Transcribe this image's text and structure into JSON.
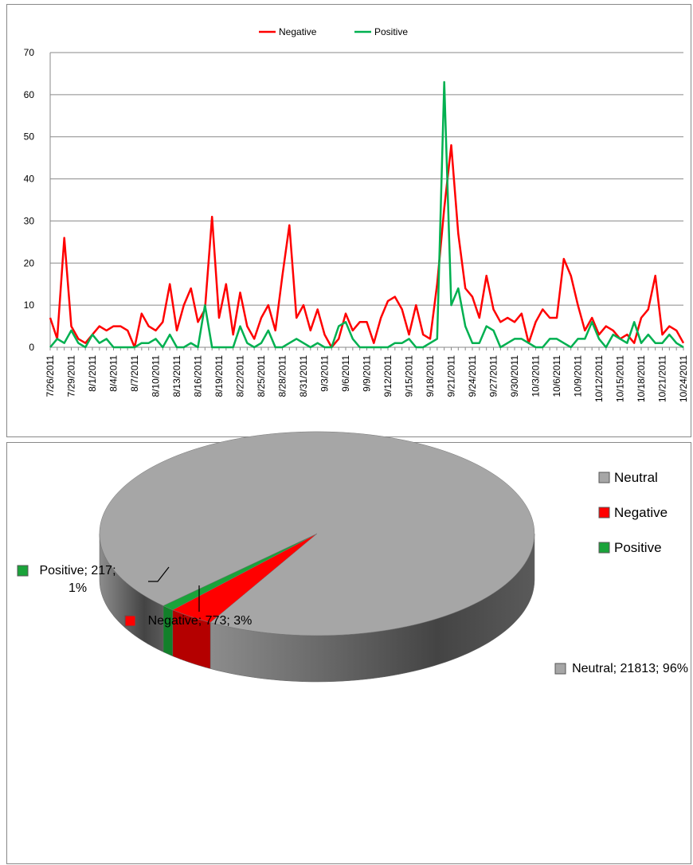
{
  "chart_data": [
    {
      "type": "line",
      "categories": [
        "7/26/2011",
        null,
        null,
        "7/29/2011",
        null,
        null,
        "8/1/2011",
        null,
        null,
        "8/4/2011",
        null,
        null,
        "8/7/2011",
        null,
        null,
        "8/10/2011",
        null,
        null,
        "8/13/2011",
        null,
        null,
        "8/16/2011",
        null,
        null,
        "8/19/2011",
        null,
        null,
        "8/22/2011",
        null,
        null,
        "8/25/2011",
        null,
        null,
        "8/28/2011",
        null,
        null,
        "8/31/2011",
        null,
        null,
        "9/3/2011",
        null,
        null,
        "9/6/2011",
        null,
        null,
        "9/9/2011",
        null,
        null,
        "9/12/2011",
        null,
        null,
        "9/15/2011",
        null,
        null,
        "9/18/2011",
        null,
        null,
        "9/21/2011",
        null,
        null,
        "9/24/2011",
        null,
        null,
        "9/27/2011",
        null,
        null,
        "9/30/2011",
        null,
        null,
        "10/3/2011",
        null,
        null,
        "10/6/2011",
        null,
        null,
        "10/9/2011",
        null,
        null,
        "10/12/2011",
        null,
        null,
        "10/15/2011",
        null,
        null,
        "10/18/2011",
        null,
        null,
        "10/21/2011",
        null,
        null,
        "10/24/2011"
      ],
      "series": [
        {
          "name": "Negative",
          "color": "#ff0000",
          "values": [
            7,
            2,
            26,
            5,
            2,
            1,
            3,
            5,
            4,
            5,
            5,
            4,
            0,
            8,
            5,
            4,
            6,
            15,
            4,
            10,
            14,
            6,
            9,
            31,
            7,
            15,
            3,
            13,
            5,
            2,
            7,
            10,
            4,
            17,
            29,
            7,
            10,
            4,
            9,
            3,
            0,
            2,
            8,
            4,
            6,
            6,
            1,
            7,
            11,
            12,
            9,
            3,
            10,
            3,
            2,
            15,
            33,
            48,
            27,
            14,
            12,
            7,
            17,
            9,
            6,
            7,
            6,
            8,
            1,
            6,
            9,
            7,
            7,
            21,
            17,
            10,
            4,
            7,
            3,
            5,
            4,
            2,
            3,
            1,
            7,
            9,
            17,
            3,
            5,
            4,
            1
          ]
        },
        {
          "name": "Positive",
          "color": "#00b050",
          "values": [
            0,
            2,
            1,
            4,
            1,
            0,
            3,
            1,
            2,
            0,
            0,
            0,
            0,
            1,
            1,
            2,
            0,
            3,
            0,
            0,
            1,
            0,
            10,
            0,
            0,
            0,
            0,
            5,
            1,
            0,
            1,
            4,
            0,
            0,
            1,
            2,
            1,
            0,
            1,
            0,
            0,
            5,
            6,
            2,
            0,
            0,
            0,
            0,
            0,
            1,
            1,
            2,
            0,
            0,
            1,
            2,
            63,
            10,
            14,
            5,
            1,
            1,
            5,
            4,
            0,
            1,
            2,
            2,
            1,
            0,
            0,
            2,
            2,
            1,
            0,
            2,
            2,
            6,
            2,
            0,
            3,
            2,
            1,
            6,
            1,
            3,
            1,
            1,
            3,
            1,
            0
          ]
        }
      ],
      "ylim": [
        0,
        70
      ],
      "yticks": [
        0,
        10,
        20,
        30,
        40,
        50,
        60,
        70
      ],
      "grid": true,
      "legend": "top"
    },
    {
      "type": "pie3d",
      "categories": [
        "Neutral",
        "Negative",
        "Positive"
      ],
      "values": [
        21813,
        773,
        217
      ],
      "value_labels": [
        "Neutral; 21813; 96%",
        "Negative; 773; 3%",
        "Positive; 217; 1%"
      ],
      "colors": [
        "#a6a6a6",
        "#ff0000",
        "#1aa33a"
      ],
      "legend": "top-right"
    }
  ]
}
